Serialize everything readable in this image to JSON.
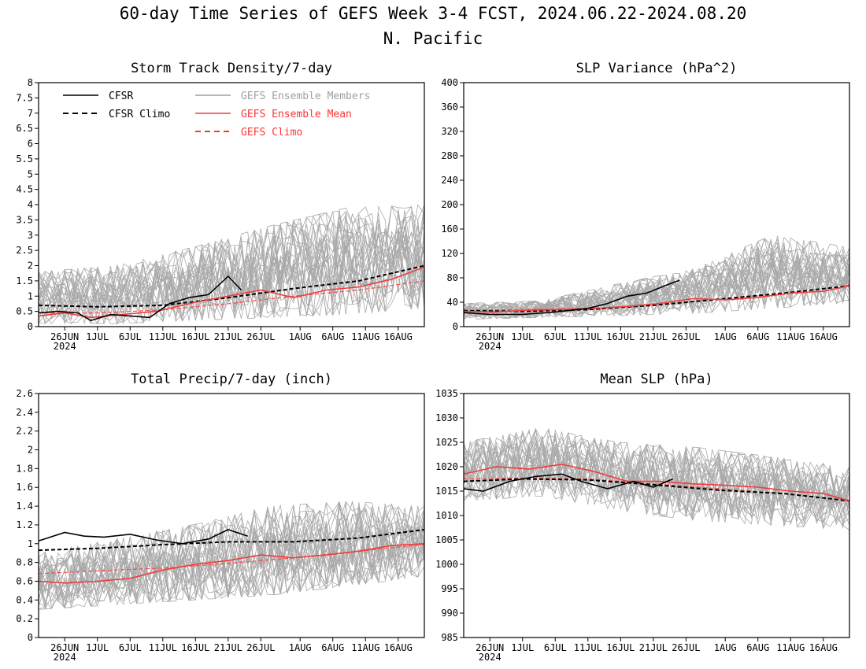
{
  "figure": {
    "title_line1": "60-day Time Series of GEFS Week 3-4 FCST, 2024.06.22-2024.08.20",
    "title_line2": "N. Pacific"
  },
  "x_axis": {
    "start_date": "2024-06-22",
    "end_date": "2024-08-20",
    "ticks": [
      {
        "date": "2024-06-26",
        "label": "26JUN"
      },
      {
        "date": "2024-07-01",
        "label": "1JUL"
      },
      {
        "date": "2024-07-06",
        "label": "6JUL"
      },
      {
        "date": "2024-07-11",
        "label": "11JUL"
      },
      {
        "date": "2024-07-16",
        "label": "16JUL"
      },
      {
        "date": "2024-07-21",
        "label": "21JUL"
      },
      {
        "date": "2024-07-26",
        "label": "26JUL"
      },
      {
        "date": "2024-08-01",
        "label": "1AUG"
      },
      {
        "date": "2024-08-06",
        "label": "6AUG"
      },
      {
        "date": "2024-08-11",
        "label": "11AUG"
      },
      {
        "date": "2024-08-16",
        "label": "16AUG"
      }
    ],
    "year_label": "2024"
  },
  "legend": {
    "entries": [
      {
        "label": "CFSR",
        "color": "#000000",
        "dashed": false
      },
      {
        "label": "CFSR Climo",
        "color": "#000000",
        "dashed": true
      },
      {
        "label": "GEFS Ensemble Members",
        "color": "#a0a0a0",
        "dashed": false
      },
      {
        "label": "GEFS Ensemble Mean",
        "color": "#ff3333",
        "dashed": false
      },
      {
        "label": "GEFS Climo",
        "color": "#ff3333",
        "dashed": true
      }
    ]
  },
  "colors": {
    "cfsr": "#000000",
    "members": "#a9a9a9",
    "ens_mean": "#f03c3c",
    "gefs_climo": "#ff4d4d"
  },
  "chart_data": [
    {
      "type": "line",
      "title": "Storm Track Density/7-day",
      "ylim": [
        0,
        8
      ],
      "yticks": [
        "0",
        "0.5",
        "1",
        "1.5",
        "2",
        "2.5",
        "3",
        "3.5",
        "4",
        "4.5",
        "5",
        "5.5",
        "6",
        "6.5",
        "7",
        "7.5",
        "8"
      ],
      "members_approx": {
        "count": 30,
        "note": "approximate envelope",
        "low": [
          0.1,
          0.1,
          0.2,
          0.3,
          0.4,
          0.6
        ],
        "high": [
          1.8,
          2.0,
          2.6,
          3.3,
          3.9,
          4.0
        ]
      },
      "series": [
        {
          "name": "CFSR",
          "x": [
            "2024-06-22",
            "2024-06-25",
            "2024-06-28",
            "2024-06-30",
            "2024-07-03",
            "2024-07-06",
            "2024-07-09",
            "2024-07-12",
            "2024-07-15",
            "2024-07-18",
            "2024-07-21",
            "2024-07-23"
          ],
          "y": [
            0.45,
            0.5,
            0.45,
            0.2,
            0.4,
            0.35,
            0.3,
            0.75,
            0.95,
            1.05,
            1.65,
            1.2
          ]
        },
        {
          "name": "CFSR Climo",
          "x": [
            "2024-06-22",
            "2024-07-01",
            "2024-07-11",
            "2024-07-21",
            "2024-07-31",
            "2024-08-10",
            "2024-08-20"
          ],
          "y": [
            0.7,
            0.65,
            0.7,
            0.95,
            1.25,
            1.5,
            2.0
          ]
        },
        {
          "name": "GEFS Ensemble Mean",
          "x": [
            "2024-06-22",
            "2024-06-26",
            "2024-06-30",
            "2024-07-05",
            "2024-07-10",
            "2024-07-16",
            "2024-07-21",
            "2024-07-26",
            "2024-07-31",
            "2024-08-05",
            "2024-08-10",
            "2024-08-15",
            "2024-08-20"
          ],
          "y": [
            0.35,
            0.45,
            0.3,
            0.4,
            0.5,
            0.8,
            1.0,
            1.2,
            0.95,
            1.2,
            1.3,
            1.55,
            1.95
          ]
        },
        {
          "name": "GEFS Climo",
          "x": [
            "2024-06-22",
            "2024-07-01",
            "2024-07-11",
            "2024-07-21",
            "2024-07-31",
            "2024-08-10",
            "2024-08-20"
          ],
          "y": [
            0.45,
            0.45,
            0.55,
            0.75,
            1.0,
            1.2,
            1.5
          ]
        }
      ]
    },
    {
      "type": "line",
      "title": "SLP Variance (hPa^2)",
      "ylim": [
        0,
        400
      ],
      "yticks": [
        "0",
        "40",
        "80",
        "120",
        "160",
        "200",
        "240",
        "280",
        "320",
        "360",
        "400"
      ],
      "members_approx": {
        "count": 30,
        "note": "approximate envelope",
        "low": [
          12,
          15,
          18,
          22,
          30,
          40
        ],
        "high": [
          38,
          42,
          70,
          95,
          150,
          130
        ]
      },
      "series": [
        {
          "name": "CFSR",
          "x": [
            "2024-06-22",
            "2024-06-26",
            "2024-07-01",
            "2024-07-06",
            "2024-07-11",
            "2024-07-14",
            "2024-07-17",
            "2024-07-20",
            "2024-07-23",
            "2024-07-25"
          ],
          "y": [
            23,
            20,
            20,
            24,
            30,
            38,
            50,
            55,
            68,
            76
          ]
        },
        {
          "name": "CFSR Climo",
          "x": [
            "2024-06-22",
            "2024-07-01",
            "2024-07-11",
            "2024-07-21",
            "2024-07-31",
            "2024-08-10",
            "2024-08-20"
          ],
          "y": [
            26,
            25,
            28,
            35,
            45,
            55,
            67
          ]
        },
        {
          "name": "GEFS Ensemble Mean",
          "x": [
            "2024-06-22",
            "2024-06-27",
            "2024-07-02",
            "2024-07-07",
            "2024-07-12",
            "2024-07-17",
            "2024-07-22",
            "2024-07-27",
            "2024-08-01",
            "2024-08-06",
            "2024-08-11",
            "2024-08-16",
            "2024-08-20"
          ],
          "y": [
            25,
            24,
            27,
            28,
            30,
            33,
            38,
            46,
            44,
            48,
            55,
            58,
            67
          ]
        },
        {
          "name": "GEFS Climo",
          "x": [
            "2024-06-22",
            "2024-07-01",
            "2024-07-11",
            "2024-07-21",
            "2024-07-31",
            "2024-08-10",
            "2024-08-20"
          ],
          "y": [
            27,
            28,
            30,
            35,
            44,
            55,
            67
          ]
        }
      ]
    },
    {
      "type": "line",
      "title": "Total Precip/7-day (inch)",
      "ylim": [
        0,
        2.6
      ],
      "yticks": [
        "0",
        "0.2",
        "0.4",
        "0.6",
        "0.8",
        "1",
        "1.2",
        "1.4",
        "1.6",
        "1.8",
        "2",
        "2.2",
        "2.4",
        "2.6"
      ],
      "members_approx": {
        "count": 30,
        "note": "approximate envelope",
        "low": [
          0.3,
          0.35,
          0.4,
          0.45,
          0.55,
          0.65
        ],
        "high": [
          0.9,
          1.05,
          1.2,
          1.4,
          1.45,
          1.4
        ]
      },
      "series": [
        {
          "name": "CFSR",
          "x": [
            "2024-06-22",
            "2024-06-26",
            "2024-06-29",
            "2024-07-02",
            "2024-07-06",
            "2024-07-10",
            "2024-07-14",
            "2024-07-18",
            "2024-07-21",
            "2024-07-24"
          ],
          "y": [
            1.03,
            1.12,
            1.08,
            1.07,
            1.1,
            1.04,
            1.0,
            1.05,
            1.15,
            1.08
          ]
        },
        {
          "name": "CFSR Climo",
          "x": [
            "2024-06-22",
            "2024-07-01",
            "2024-07-11",
            "2024-07-21",
            "2024-07-31",
            "2024-08-10",
            "2024-08-20"
          ],
          "y": [
            0.93,
            0.95,
            0.99,
            1.02,
            1.02,
            1.06,
            1.15
          ]
        },
        {
          "name": "GEFS Ensemble Mean",
          "x": [
            "2024-06-22",
            "2024-06-26",
            "2024-07-01",
            "2024-07-06",
            "2024-07-11",
            "2024-07-16",
            "2024-07-21",
            "2024-07-26",
            "2024-07-31",
            "2024-08-05",
            "2024-08-10",
            "2024-08-15",
            "2024-08-20"
          ],
          "y": [
            0.6,
            0.58,
            0.6,
            0.63,
            0.72,
            0.78,
            0.82,
            0.88,
            0.85,
            0.88,
            0.92,
            0.98,
            1.0
          ]
        },
        {
          "name": "GEFS Climo",
          "x": [
            "2024-06-22",
            "2024-07-01",
            "2024-07-11",
            "2024-07-21",
            "2024-07-31",
            "2024-08-10",
            "2024-08-20"
          ],
          "y": [
            0.68,
            0.71,
            0.74,
            0.79,
            0.85,
            0.92,
            0.99
          ]
        }
      ]
    },
    {
      "type": "line",
      "title": "Mean SLP (hPa)",
      "ylim": [
        985,
        1035
      ],
      "yticks": [
        "985",
        "990",
        "995",
        "1000",
        "1005",
        "1010",
        "1015",
        "1020",
        "1025",
        "1030",
        "1035"
      ],
      "members_approx": {
        "count": 30,
        "note": "approximate envelope",
        "low": [
          1013,
          1014,
          1011,
          1009,
          1008,
          1007
        ],
        "high": [
          1025,
          1028,
          1025,
          1024,
          1022,
          1020
        ]
      },
      "series": [
        {
          "name": "CFSR",
          "x": [
            "2024-06-22",
            "2024-06-25",
            "2024-06-29",
            "2024-07-03",
            "2024-07-07",
            "2024-07-10",
            "2024-07-14",
            "2024-07-18",
            "2024-07-21",
            "2024-07-24"
          ],
          "y": [
            1015.5,
            1015.0,
            1017.0,
            1018.0,
            1018.5,
            1017.0,
            1015.5,
            1017.0,
            1015.8,
            1017.5
          ]
        },
        {
          "name": "CFSR Climo",
          "x": [
            "2024-06-22",
            "2024-07-01",
            "2024-07-11",
            "2024-07-21",
            "2024-07-31",
            "2024-08-10",
            "2024-08-20"
          ],
          "y": [
            1017.0,
            1017.5,
            1017.3,
            1016.3,
            1015.2,
            1014.5,
            1013.0
          ]
        },
        {
          "name": "GEFS Ensemble Mean",
          "x": [
            "2024-06-22",
            "2024-06-27",
            "2024-07-02",
            "2024-07-07",
            "2024-07-12",
            "2024-07-17",
            "2024-07-22",
            "2024-07-27",
            "2024-08-01",
            "2024-08-06",
            "2024-08-11",
            "2024-08-16",
            "2024-08-20"
          ],
          "y": [
            1018.5,
            1020.0,
            1019.5,
            1020.5,
            1019.0,
            1017.0,
            1017.0,
            1016.5,
            1016.2,
            1015.8,
            1015.0,
            1014.5,
            1013.0
          ]
        },
        {
          "name": "GEFS Climo",
          "x": [
            "2024-06-22",
            "2024-07-01",
            "2024-07-11",
            "2024-07-21",
            "2024-07-31",
            "2024-08-10",
            "2024-08-20"
          ],
          "y": [
            1017.5,
            1017.7,
            1017.5,
            1016.5,
            1015.5,
            1014.5,
            1013.0
          ]
        }
      ]
    }
  ]
}
